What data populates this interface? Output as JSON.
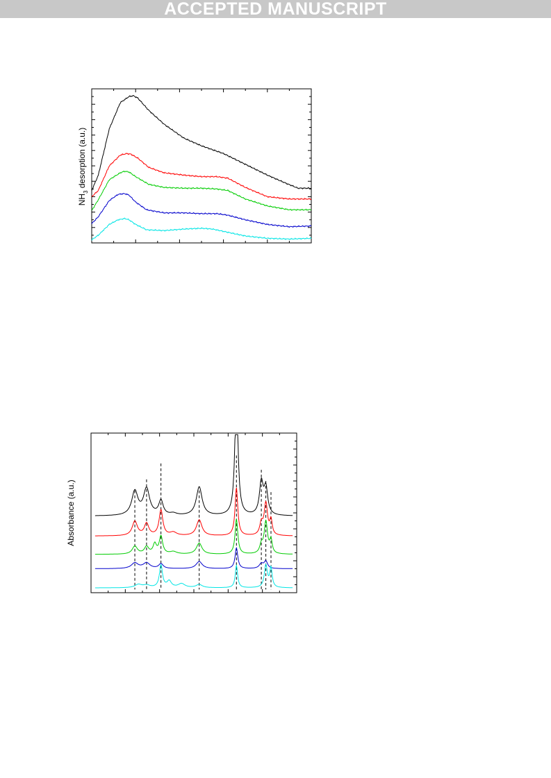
{
  "banner": {
    "text": "ACCEPTED MANUSCRIPT",
    "background": "#c8c8c8"
  },
  "chart_data": [
    {
      "type": "line",
      "title": "",
      "xlabel": "",
      "ylabel_main": "NH",
      "ylabel_sub": "3",
      "ylabel_rest": " desorption (a.u.)",
      "xlim": [
        0,
        1
      ],
      "ylim": [
        0,
        1
      ],
      "grid": false,
      "series": [
        {
          "color": "#000000",
          "x": [
            0,
            0.03,
            0.08,
            0.13,
            0.17,
            0.19,
            0.21,
            0.26,
            0.33,
            0.42,
            0.5,
            0.6,
            0.7,
            0.8,
            0.88,
            0.94,
            1.0
          ],
          "y": [
            0.34,
            0.44,
            0.74,
            0.91,
            0.95,
            0.955,
            0.94,
            0.86,
            0.77,
            0.68,
            0.63,
            0.58,
            0.51,
            0.44,
            0.39,
            0.355,
            0.355
          ]
        },
        {
          "color": "#ff0000",
          "x": [
            0,
            0.03,
            0.08,
            0.13,
            0.16,
            0.18,
            0.21,
            0.26,
            0.33,
            0.42,
            0.5,
            0.57,
            0.62,
            0.7,
            0.8,
            0.9,
            1.0
          ],
          "y": [
            0.3,
            0.34,
            0.5,
            0.57,
            0.58,
            0.575,
            0.55,
            0.49,
            0.455,
            0.44,
            0.43,
            0.43,
            0.42,
            0.36,
            0.3,
            0.285,
            0.285
          ]
        },
        {
          "color": "#00cc00",
          "x": [
            0,
            0.03,
            0.08,
            0.13,
            0.15,
            0.17,
            0.2,
            0.26,
            0.33,
            0.42,
            0.5,
            0.57,
            0.62,
            0.7,
            0.8,
            0.9,
            1.0
          ],
          "y": [
            0.21,
            0.28,
            0.41,
            0.455,
            0.465,
            0.46,
            0.43,
            0.38,
            0.36,
            0.355,
            0.355,
            0.35,
            0.34,
            0.285,
            0.24,
            0.215,
            0.215
          ]
        },
        {
          "color": "#0000cc",
          "x": [
            0,
            0.03,
            0.08,
            0.12,
            0.15,
            0.17,
            0.2,
            0.25,
            0.33,
            0.42,
            0.5,
            0.57,
            0.62,
            0.7,
            0.8,
            0.9,
            1.0
          ],
          "y": [
            0.125,
            0.17,
            0.275,
            0.315,
            0.32,
            0.31,
            0.265,
            0.215,
            0.195,
            0.195,
            0.19,
            0.19,
            0.18,
            0.15,
            0.12,
            0.105,
            0.11
          ]
        },
        {
          "color": "#00e5e5",
          "x": [
            0,
            0.03,
            0.08,
            0.12,
            0.15,
            0.17,
            0.2,
            0.25,
            0.33,
            0.42,
            0.5,
            0.55,
            0.6,
            0.7,
            0.8,
            0.9,
            1.0
          ],
          "y": [
            0.02,
            0.05,
            0.12,
            0.15,
            0.158,
            0.15,
            0.12,
            0.085,
            0.08,
            0.09,
            0.095,
            0.09,
            0.075,
            0.045,
            0.03,
            0.025,
            0.03
          ]
        }
      ]
    },
    {
      "type": "line",
      "title": "",
      "xlabel": "",
      "ylabel": "Absorbance (a.u.)",
      "xlim": [
        0,
        1
      ],
      "ylim": [
        0,
        1
      ],
      "grid": false,
      "reference_lines_x": [
        0.213,
        0.27,
        0.34,
        0.526,
        0.707,
        0.828,
        0.85,
        0.875
      ],
      "series": [
        {
          "color": "#000000",
          "baseline": 0.48,
          "peaks": [
            [
              0.213,
              0.15,
              0.018
            ],
            [
              0.27,
              0.165,
              0.018
            ],
            [
              0.34,
              0.09,
              0.013
            ],
            [
              0.4,
              0.012,
              0.02
            ],
            [
              0.526,
              0.18,
              0.017
            ],
            [
              0.707,
              0.79,
              0.009
            ],
            [
              0.828,
              0.2,
              0.011
            ],
            [
              0.85,
              0.165,
              0.011
            ]
          ]
        },
        {
          "color": "#ff0000",
          "baseline": 0.355,
          "peaks": [
            [
              0.213,
              0.09,
              0.015
            ],
            [
              0.27,
              0.075,
              0.013
            ],
            [
              0.34,
              0.16,
              0.011
            ],
            [
              0.4,
              0.02,
              0.02
            ],
            [
              0.526,
              0.1,
              0.016
            ],
            [
              0.707,
              0.3,
              0.008
            ],
            [
              0.828,
              0.07,
              0.009
            ],
            [
              0.85,
              0.2,
              0.01
            ],
            [
              0.875,
              0.09,
              0.007
            ]
          ]
        },
        {
          "color": "#00cc00",
          "baseline": 0.24,
          "peaks": [
            [
              0.213,
              0.05,
              0.015
            ],
            [
              0.27,
              0.045,
              0.013
            ],
            [
              0.31,
              0.06,
              0.01
            ],
            [
              0.34,
              0.11,
              0.01
            ],
            [
              0.4,
              0.015,
              0.02
            ],
            [
              0.526,
              0.07,
              0.016
            ],
            [
              0.707,
              0.22,
              0.008
            ],
            [
              0.828,
              0.05,
              0.009
            ],
            [
              0.85,
              0.2,
              0.01
            ],
            [
              0.875,
              0.08,
              0.007
            ]
          ]
        },
        {
          "color": "#0000cc",
          "baseline": 0.15,
          "peaks": [
            [
              0.213,
              0.035,
              0.02
            ],
            [
              0.27,
              0.035,
              0.02
            ],
            [
              0.34,
              0.03,
              0.013
            ],
            [
              0.526,
              0.045,
              0.018
            ],
            [
              0.707,
              0.13,
              0.008
            ],
            [
              0.828,
              0.03,
              0.012
            ],
            [
              0.85,
              0.045,
              0.01
            ]
          ]
        },
        {
          "color": "#00e5e5",
          "baseline": 0.03,
          "peaks": [
            [
              0.23,
              0.02,
              0.02
            ],
            [
              0.27,
              0.015,
              0.02
            ],
            [
              0.34,
              0.14,
              0.009
            ],
            [
              0.38,
              0.04,
              0.013
            ],
            [
              0.44,
              0.025,
              0.02
            ],
            [
              0.526,
              0.02,
              0.018
            ],
            [
              0.707,
              0.14,
              0.007
            ],
            [
              0.85,
              0.14,
              0.009
            ],
            [
              0.875,
              0.12,
              0.007
            ]
          ]
        }
      ]
    }
  ]
}
